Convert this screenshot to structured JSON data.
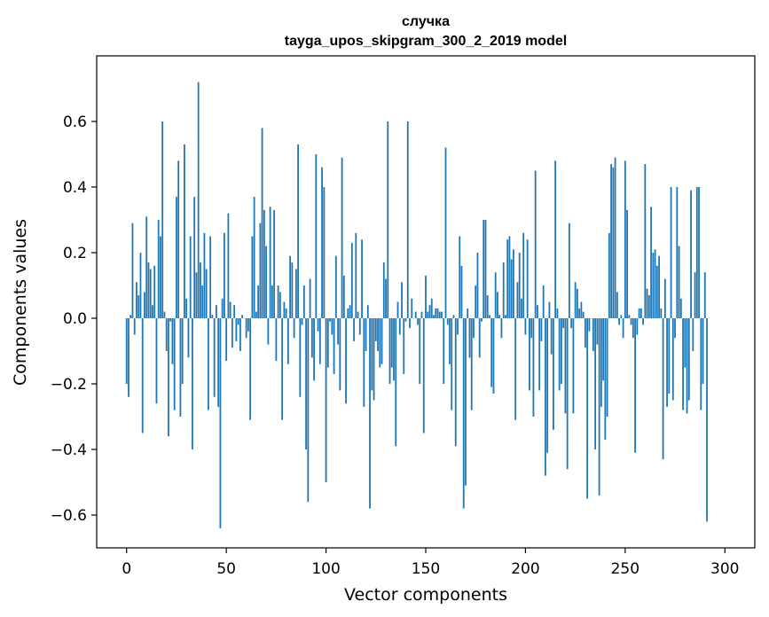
{
  "chart_data": {
    "type": "bar",
    "title": [
      "случка",
      "tayga_upos_skipgram_300_2_2019 model"
    ],
    "xlabel": "Vector components",
    "ylabel": "Components values",
    "xlim": [
      -15,
      315
    ],
    "ylim": [
      -0.7,
      0.8
    ],
    "xticks": [
      0,
      50,
      100,
      150,
      200,
      250,
      300
    ],
    "yticks": [
      -0.6,
      -0.4,
      -0.2,
      0.0,
      0.2,
      0.4,
      0.6
    ],
    "ytick_labels": [
      "−0.6",
      "−0.4",
      "−0.2",
      "0.0",
      "0.2",
      "0.4",
      "0.6"
    ],
    "bar_color": "#1f77b4",
    "grid": false,
    "x_start": 0,
    "values": [
      -0.2,
      -0.24,
      0.01,
      0.29,
      -0.05,
      0.11,
      0.07,
      0.2,
      -0.35,
      0.08,
      0.31,
      0.17,
      0.15,
      0.04,
      0.16,
      -0.26,
      0.3,
      0.25,
      0.6,
      0.02,
      -0.1,
      -0.36,
      -0.01,
      -0.14,
      -0.28,
      0.37,
      0.48,
      -0.3,
      -0.2,
      0.53,
      0.06,
      -0.12,
      0.25,
      -0.4,
      0.37,
      0.14,
      0.72,
      0.17,
      0.1,
      0.26,
      0.15,
      -0.28,
      0.25,
      0.01,
      -0.24,
      0.04,
      -0.27,
      -0.64,
      0.06,
      0.26,
      -0.13,
      0.32,
      0.05,
      -0.09,
      0.04,
      -0.07,
      -0.02,
      -0.1,
      0.01,
      0.0,
      -0.06,
      -0.04,
      -0.31,
      0.25,
      0.37,
      0.02,
      0.1,
      0.29,
      0.58,
      0.33,
      0.22,
      -0.08,
      0.34,
      0.1,
      0.33,
      -0.13,
      0.1,
      0.08,
      -0.31,
      0.05,
      0.03,
      -0.14,
      0.19,
      0.17,
      -0.06,
      0.15,
      0.53,
      -0.24,
      -0.02,
      0.1,
      -0.4,
      -0.56,
      0.12,
      -0.12,
      -0.19,
      0.5,
      -0.04,
      -0.14,
      0.46,
      0.4,
      -0.5,
      -0.15,
      -0.01,
      -0.05,
      -0.17,
      0.19,
      -0.08,
      -0.22,
      0.49,
      0.13,
      -0.26,
      0.03,
      0.04,
      0.23,
      -0.07,
      0.26,
      0.02,
      -0.05,
      0.24,
      -0.27,
      -0.1,
      0.04,
      -0.58,
      -0.22,
      -0.25,
      -0.07,
      -0.1,
      -0.15,
      -0.14,
      0.17,
      0.12,
      0.6,
      -0.2,
      -0.15,
      -0.19,
      -0.39,
      0.05,
      -0.05,
      0.11,
      -0.17,
      -0.01,
      0.6,
      -0.03,
      0.06,
      0.0,
      0.02,
      -0.02,
      -0.2,
      0.02,
      -0.35,
      0.13,
      0.02,
      0.04,
      0.06,
      0.01,
      0.03,
      0.03,
      0.02,
      0.02,
      -0.2,
      0.52,
      -0.02,
      -0.14,
      -0.28,
      0.01,
      -0.39,
      -0.05,
      0.25,
      0.16,
      -0.58,
      -0.51,
      0.03,
      -0.12,
      -0.28,
      -0.06,
      0.1,
      0.2,
      -0.12,
      -0.01,
      0.3,
      0.3,
      0.07,
      0.01,
      -0.21,
      -0.23,
      0.14,
      0.08,
      0.01,
      -0.06,
      0.17,
      0.01,
      0.24,
      0.25,
      0.18,
      0.21,
      -0.31,
      0.11,
      0.2,
      0.06,
      0.26,
      -0.05,
      0.24,
      -0.22,
      -0.06,
      -0.3,
      0.45,
      0.04,
      -0.22,
      -0.07,
      0.1,
      -0.48,
      -0.41,
      0.05,
      -0.11,
      -0.34,
      0.48,
      0.03,
      -0.22,
      -0.2,
      -0.03,
      -0.29,
      -0.46,
      0.29,
      -0.03,
      -0.29,
      0.11,
      0.09,
      0.03,
      0.05,
      0.02,
      -0.09,
      -0.55,
      -0.04,
      0.0,
      -0.1,
      -0.4,
      -0.08,
      -0.54,
      -0.27,
      -0.19,
      -0.37,
      -0.3,
      0.26,
      0.47,
      0.46,
      0.49,
      0.08,
      -0.02,
      0.01,
      -0.06,
      0.48,
      0.33,
      0.01,
      -0.02,
      -0.06,
      -0.41,
      -0.05,
      0.03,
      0.03,
      -0.02,
      0.47,
      0.09,
      0.07,
      0.34,
      0.2,
      0.21,
      0.16,
      0.19,
      0.03,
      -0.43,
      0.12,
      -0.27,
      -0.23,
      0.4,
      -0.25,
      -0.06,
      0.4,
      0.22,
      0.06,
      -0.28,
      -0.15,
      -0.29,
      -0.25,
      0.39,
      -0.1,
      0.14,
      0.4,
      0.4,
      -0.28,
      -0.2,
      0.14,
      -0.62
    ]
  }
}
